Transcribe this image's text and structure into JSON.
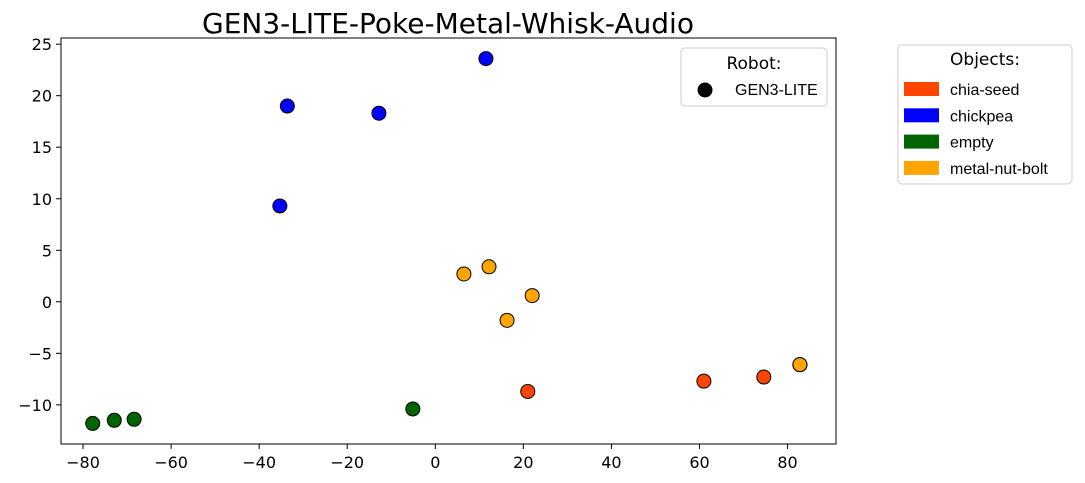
{
  "chart_data": {
    "type": "scatter",
    "title": "GEN3-LITE-Poke-Metal-Whisk-Audio",
    "xlabel": "",
    "ylabel": "",
    "xlim": [
      -85,
      91
    ],
    "ylim": [
      -13.8,
      25.6
    ],
    "xticks": [
      -80,
      -60,
      -40,
      -20,
      0,
      20,
      40,
      60,
      80
    ],
    "xtick_labels": [
      "−80",
      "−60",
      "−40",
      "−20",
      "0",
      "20",
      "40",
      "60",
      "80"
    ],
    "yticks": [
      -10,
      -5,
      0,
      5,
      10,
      15,
      20,
      25
    ],
    "ytick_labels": [
      "−10",
      "−5",
      "0",
      "5",
      "10",
      "15",
      "20",
      "25"
    ],
    "grid": false,
    "series": [
      {
        "name": "chia-seed",
        "color": "#FF4500",
        "points": [
          [
            21,
            -8.7
          ],
          [
            61,
            -7.7
          ],
          [
            74.6,
            -7.3
          ],
          [
            82.8,
            -6.1
          ],
          [
            82.8,
            -6.1
          ]
        ]
      },
      {
        "name": "chickpea",
        "color": "#0000FF",
        "points": [
          [
            11.5,
            23.6
          ],
          [
            -33.6,
            19.0
          ],
          [
            -12.8,
            18.3
          ],
          [
            -35.3,
            9.3
          ]
        ]
      },
      {
        "name": "empty",
        "color": "#006400",
        "points": [
          [
            -77.8,
            -11.8
          ],
          [
            -72.9,
            -11.5
          ],
          [
            -68.4,
            -11.4
          ],
          [
            -5.1,
            -10.4
          ]
        ]
      },
      {
        "name": "metal-nut-bolt",
        "color": "#FFA500",
        "points": [
          [
            6.5,
            2.7
          ],
          [
            12.2,
            3.4
          ],
          [
            22,
            0.6
          ],
          [
            16.3,
            -1.8
          ],
          [
            82.8,
            -6.1
          ]
        ]
      }
    ],
    "robot_legend": {
      "title": "Robot:",
      "entries": [
        {
          "label": "GEN3-LITE",
          "marker": "circle",
          "color": "#000000"
        }
      ],
      "placement": "upper-right-inside"
    },
    "objects_legend": {
      "title": "Objects:",
      "entries": [
        {
          "label": "chia-seed",
          "color": "#FF4500"
        },
        {
          "label": "chickpea",
          "color": "#0000FF"
        },
        {
          "label": "empty",
          "color": "#006400"
        },
        {
          "label": "metal-nut-bolt",
          "color": "#FFA500"
        }
      ],
      "placement": "outside-right"
    }
  }
}
